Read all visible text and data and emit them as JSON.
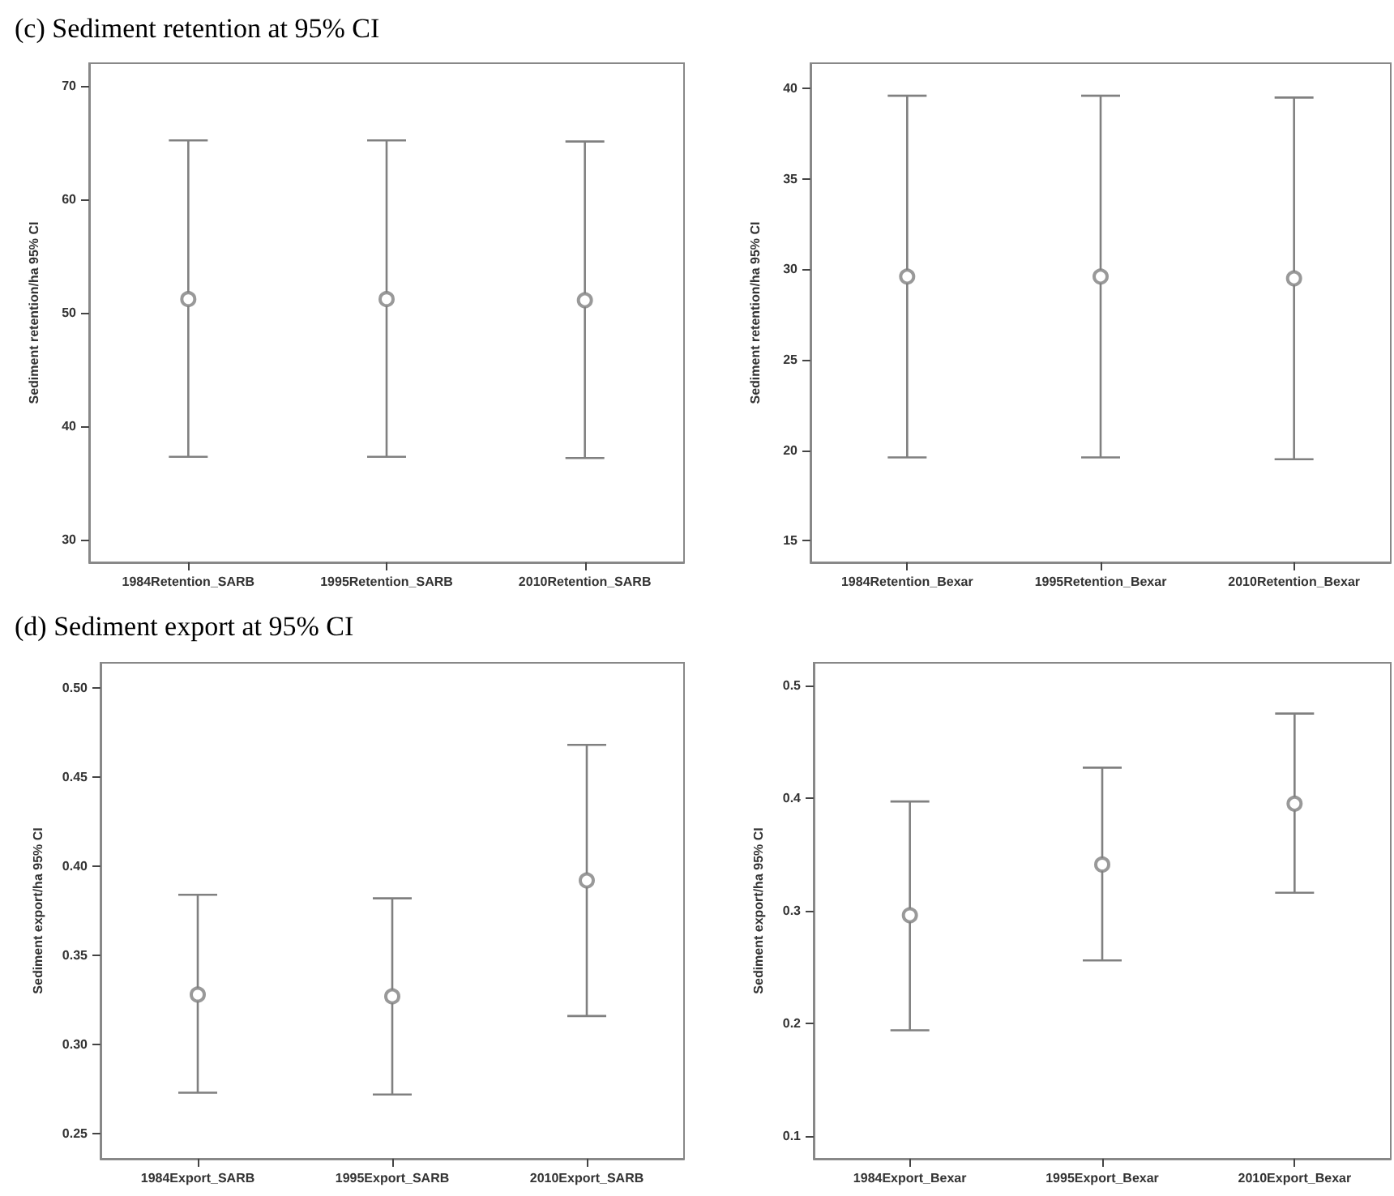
{
  "chart_data": [
    {
      "type": "scatter",
      "title": "(c) Sediment retention at 95% CI",
      "ylabel": "Sediment retention/ha 95% CI",
      "categories": [
        "1984Retention_SARB",
        "1995Retention_SARB",
        "2010Retention_SARB"
      ],
      "ylim": [
        28,
        72
      ],
      "yticks": [
        30,
        40,
        50,
        60,
        70
      ],
      "grid": false,
      "marker": "circle",
      "series": [
        {
          "color": "#808080",
          "values": [
            51.2,
            51.2,
            51.1
          ],
          "errors": [
            [
              37.3,
              65.2
            ],
            [
              37.3,
              65.2
            ],
            [
              37.2,
              65.1
            ]
          ]
        }
      ]
    },
    {
      "type": "scatter",
      "ylabel": "Sediment retention/ha 95% CI",
      "categories": [
        "1984Retention_Bexar",
        "1995Retention_Bexar",
        "2010Retention_Bexar"
      ],
      "ylim": [
        13.8,
        41.4
      ],
      "yticks": [
        15,
        20,
        25,
        30,
        35,
        40
      ],
      "grid": false,
      "marker": "circle",
      "series": [
        {
          "color": "#808080",
          "values": [
            29.6,
            29.6,
            29.5
          ],
          "errors": [
            [
              19.6,
              39.6
            ],
            [
              19.6,
              39.6
            ],
            [
              19.5,
              39.5
            ]
          ]
        }
      ]
    },
    {
      "type": "scatter",
      "title": "(d) Sediment export at 95% CI",
      "ylabel": "Sediment export/ha 95% CI",
      "categories": [
        "1984Export_SARB",
        "1995Export_SARB",
        "2010Export_SARB"
      ],
      "ylim": [
        0.236,
        0.514
      ],
      "yticks": [
        {
          "value": 0.25,
          "label": "0.25"
        },
        {
          "value": 0.3,
          "label": "0.30"
        },
        {
          "value": 0.35,
          "label": "0.35"
        },
        {
          "value": 0.4,
          "label": "0.40"
        },
        {
          "value": 0.45,
          "label": "0.45"
        },
        {
          "value": 0.5,
          "label": "0.50"
        }
      ],
      "grid": false,
      "marker": "circle",
      "series": [
        {
          "color": "#808080",
          "values": [
            0.328,
            0.327,
            0.392
          ],
          "errors": [
            [
              0.273,
              0.384
            ],
            [
              0.272,
              0.382
            ],
            [
              0.316,
              0.468
            ]
          ]
        }
      ]
    },
    {
      "type": "scatter",
      "ylabel": "Sediment export/ha 95% CI",
      "categories": [
        "1984Export_Bexar",
        "1995Export_Bexar",
        "2010Export_Bexar"
      ],
      "ylim": [
        0.08,
        0.52
      ],
      "yticks": [
        0.1,
        0.2,
        0.3,
        0.4,
        0.5
      ],
      "grid": false,
      "marker": "circle",
      "series": [
        {
          "color": "#808080",
          "values": [
            0.296,
            0.341,
            0.395
          ],
          "errors": [
            [
              0.194,
              0.397
            ],
            [
              0.256,
              0.427
            ],
            [
              0.316,
              0.475
            ]
          ]
        }
      ]
    }
  ]
}
